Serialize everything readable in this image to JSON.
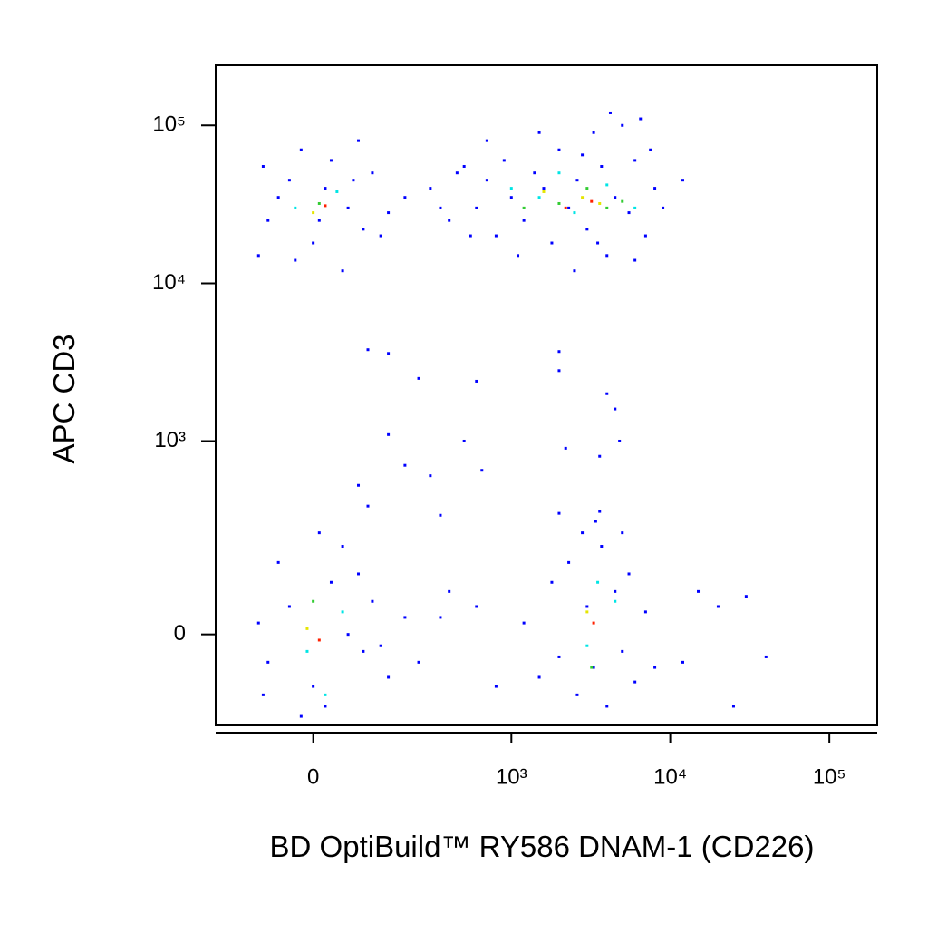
{
  "chart_data": {
    "type": "scatter",
    "x_label": "BD OptiBuild™ RY586 DNAM-1 (CD226)",
    "y_label": "APC CD3",
    "xscale": "biexponential",
    "yscale": "biexponential",
    "xlim": [
      -220,
      200000
    ],
    "ylim": [
      -210,
      240000
    ],
    "xticks": [
      0,
      {
        "value": 1000,
        "label": "10³"
      },
      {
        "value": 10000,
        "label": "10⁴"
      },
      {
        "value": 100000,
        "label": "10⁵"
      }
    ],
    "yticks": [
      0,
      {
        "value": 1000,
        "label": "10³"
      },
      {
        "value": 10000,
        "label": "10⁴"
      },
      {
        "value": 100000,
        "label": "10⁵"
      }
    ],
    "series": [
      {
        "color": "#0000ff",
        "x": [
          -80,
          -40,
          0,
          30,
          60,
          90,
          -60,
          20,
          110,
          -100,
          50,
          150,
          -20,
          80,
          200,
          -90,
          10,
          130,
          70,
          -30,
          300,
          400,
          500,
          600,
          700,
          800,
          900,
          1000,
          1200,
          1400,
          1600,
          1800,
          2000,
          2300,
          2600,
          3000,
          3300,
          3700,
          4000,
          4500,
          5000,
          5500,
          6000,
          7000,
          8000,
          9000,
          12000,
          700,
          1500,
          2500,
          4200,
          6500,
          350,
          450,
          550,
          1100,
          3500,
          2800,
          6000,
          7500,
          100,
          150,
          250,
          600,
          2000,
          2000,
          4000,
          4500,
          150,
          500,
          650,
          200,
          300,
          2200,
          3600,
          4800,
          80,
          100,
          350,
          2000,
          3600,
          -80,
          -40,
          0,
          30,
          60,
          90,
          -60,
          20,
          110,
          -100,
          50,
          150,
          -20,
          80,
          200,
          -90,
          10,
          130,
          1200,
          1500,
          1800,
          2000,
          2300,
          2600,
          3000,
          3300,
          3700,
          4000,
          4500,
          5000,
          5500,
          6000,
          7000,
          8000,
          600,
          800,
          400,
          2800,
          3400,
          5000,
          15000,
          20000,
          30000,
          12000,
          40000,
          25000,
          250,
          350
        ],
        "values": [
          25000,
          45000,
          18000,
          60000,
          30000,
          22000,
          35000,
          40000,
          50000,
          15000,
          12000,
          28000,
          70000,
          80000,
          35000,
          55000,
          25000,
          20000,
          45000,
          14000,
          40000,
          25000,
          55000,
          30000,
          45000,
          20000,
          60000,
          35000,
          25000,
          50000,
          40000,
          18000,
          70000,
          30000,
          45000,
          22000,
          90000,
          55000,
          15000,
          35000,
          100000,
          28000,
          60000,
          20000,
          40000,
          30000,
          45000,
          80000,
          90000,
          12000,
          120000,
          110000,
          30000,
          50000,
          20000,
          15000,
          18000,
          65000,
          14000,
          70000,
          3800,
          3600,
          2500,
          2400,
          3700,
          2800,
          2000,
          1600,
          1100,
          1000,
          650,
          700,
          600,
          900,
          800,
          1000,
          520,
          380,
          330,
          340,
          350,
          -50,
          50,
          -100,
          100,
          0,
          -30,
          150,
          -150,
          60,
          20,
          200,
          -80,
          -180,
          120,
          30,
          -120,
          250,
          -20,
          20,
          -80,
          100,
          -40,
          150,
          -120,
          50,
          -60,
          200,
          -150,
          80,
          -30,
          120,
          -90,
          40,
          -60,
          50,
          -100,
          80,
          250,
          300,
          250,
          80,
          50,
          70,
          -50,
          -40,
          -150,
          -50,
          30
        ]
      },
      {
        "color": "#00e5e5",
        "x": [
          -30,
          40,
          -10,
          50,
          1500,
          2500,
          4000,
          3000,
          4500,
          1000,
          6000,
          2000,
          20,
          3500
        ],
        "values": [
          30000,
          38000,
          -30,
          40,
          35000,
          28000,
          42000,
          -20,
          60,
          40000,
          30000,
          50000,
          -120,
          100
        ]
      },
      {
        "color": "#33cc33",
        "x": [
          10,
          2000,
          3000,
          5000,
          0,
          3200,
          1200,
          4000
        ],
        "values": [
          32000,
          32000,
          40000,
          33000,
          60,
          -60,
          30000,
          30000
        ]
      },
      {
        "color": "#e5e500",
        "x": [
          0,
          2800,
          3600,
          -10,
          3000,
          1600
        ],
        "values": [
          28000,
          35000,
          32000,
          10,
          40,
          38000
        ]
      },
      {
        "color": "#ff2000",
        "x": [
          20,
          3200,
          10,
          3300,
          2200
        ],
        "values": [
          31000,
          33000,
          -10,
          20,
          30000
        ]
      }
    ]
  }
}
